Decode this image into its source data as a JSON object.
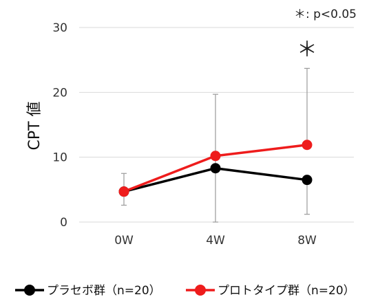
{
  "chart_data": {
    "type": "line",
    "ylabel": "CPT 値",
    "ylim": [
      0,
      30
    ],
    "yticks": [
      0,
      10,
      20,
      30
    ],
    "categories": [
      "0W",
      "4W",
      "8W"
    ],
    "grid": true,
    "legend_position": "bottom",
    "annotation_text": "＊: p<0.05",
    "significance_marker": {
      "category": "8W",
      "symbol": "＊"
    },
    "series": [
      {
        "name": "プラセボ群（n=20）",
        "color": "#000000",
        "values": [
          4.7,
          8.3,
          6.5
        ],
        "error_upper": [
          7.5,
          19.7,
          6.5
        ],
        "error_lower": [
          2.6,
          0.0,
          1.2
        ]
      },
      {
        "name": "プロトタイプ群（n=20）",
        "color": "#ee1c1c",
        "values": [
          4.7,
          10.2,
          11.9
        ],
        "error_upper": [
          4.7,
          10.2,
          23.7
        ],
        "error_lower": [
          4.7,
          10.2,
          11.9
        ]
      }
    ]
  }
}
